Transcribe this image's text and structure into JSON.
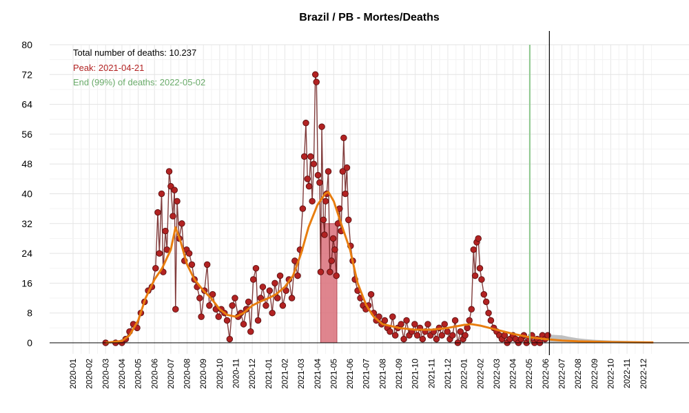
{
  "chart_data": {
    "type": "line",
    "title": "Brazil / PB - Mortes/Deaths",
    "xlabel": "",
    "ylabel": "",
    "ylim": [
      0,
      80
    ],
    "xlim": [
      "2020-01",
      "2023-01"
    ],
    "y_ticks": [
      "0",
      "8",
      "16",
      "24",
      "32",
      "40",
      "48",
      "56",
      "64",
      "72",
      "80"
    ],
    "x_ticks": [
      "2020-01",
      "2020-02",
      "2020-03",
      "2020-04",
      "2020-05",
      "2020-06",
      "2020-07",
      "2020-08",
      "2020-09",
      "2020-10",
      "2020-11",
      "2020-12",
      "2021-01",
      "2021-02",
      "2021-03",
      "2021-04",
      "2021-05",
      "2021-06",
      "2021-07",
      "2021-08",
      "2021-09",
      "2021-10",
      "2021-11",
      "2021-12",
      "2022-01",
      "2022-02",
      "2022-03",
      "2022-04",
      "2022-05",
      "2022-06",
      "2022-07",
      "2022-08",
      "2022-09",
      "2022-10",
      "2022-11",
      "2022-12"
    ],
    "grid": true,
    "annotations": {
      "total": "Total number of deaths: 10.237",
      "peak": "Peak: 2021-04-21",
      "end": "End (99%) of deaths: 2022-05-02"
    },
    "colors": {
      "points": "#b22222",
      "point_line": "#6b1a1a",
      "fit": "#e87d0e",
      "peak_band": "#d9707a",
      "end_line": "#8fc98f",
      "peak_text": "#b22222",
      "end_text": "#6aab6a",
      "forecast": "#b0b0b0"
    },
    "peak_band_range": [
      "2021-04-07",
      "2021-05-07"
    ],
    "peak_band_height": 32,
    "end_date": "2022-05-02",
    "data_end_date": "2022-06-08",
    "series": [
      {
        "type": "daily_deaths",
        "points": [
          [
            "2020-03-01",
            0
          ],
          [
            "2020-03-20",
            0
          ],
          [
            "2020-04-01",
            0
          ],
          [
            "2020-04-08",
            1
          ],
          [
            "2020-04-15",
            3
          ],
          [
            "2020-04-22",
            5
          ],
          [
            "2020-04-29",
            4
          ],
          [
            "2020-05-06",
            8
          ],
          [
            "2020-05-13",
            11
          ],
          [
            "2020-05-20",
            14
          ],
          [
            "2020-05-27",
            15
          ],
          [
            "2020-06-03",
            20
          ],
          [
            "2020-06-07",
            35
          ],
          [
            "2020-06-10",
            24
          ],
          [
            "2020-06-14",
            40
          ],
          [
            "2020-06-17",
            19
          ],
          [
            "2020-06-21",
            30
          ],
          [
            "2020-06-24",
            25
          ],
          [
            "2020-06-28",
            46
          ],
          [
            "2020-07-01",
            42
          ],
          [
            "2020-07-05",
            34
          ],
          [
            "2020-07-08",
            41
          ],
          [
            "2020-07-10",
            9
          ],
          [
            "2020-07-13",
            38
          ],
          [
            "2020-07-17",
            28
          ],
          [
            "2020-07-22",
            32
          ],
          [
            "2020-07-27",
            22
          ],
          [
            "2020-07-31",
            25
          ],
          [
            "2020-08-05",
            24
          ],
          [
            "2020-08-10",
            21
          ],
          [
            "2020-08-15",
            17
          ],
          [
            "2020-08-20",
            15
          ],
          [
            "2020-08-25",
            12
          ],
          [
            "2020-08-28",
            7
          ],
          [
            "2020-09-03",
            14
          ],
          [
            "2020-09-08",
            21
          ],
          [
            "2020-09-12",
            10
          ],
          [
            "2020-09-18",
            13
          ],
          [
            "2020-09-24",
            9
          ],
          [
            "2020-09-29",
            7
          ],
          [
            "2020-10-04",
            9
          ],
          [
            "2020-10-10",
            8
          ],
          [
            "2020-10-15",
            6
          ],
          [
            "2020-10-20",
            1
          ],
          [
            "2020-10-25",
            10
          ],
          [
            "2020-10-30",
            12
          ],
          [
            "2020-11-05",
            7
          ],
          [
            "2020-11-10",
            8
          ],
          [
            "2020-11-15",
            5
          ],
          [
            "2020-11-20",
            9
          ],
          [
            "2020-11-24",
            11
          ],
          [
            "2020-11-28",
            3
          ],
          [
            "2020-12-03",
            17
          ],
          [
            "2020-12-08",
            20
          ],
          [
            "2020-12-12",
            6
          ],
          [
            "2020-12-17",
            12
          ],
          [
            "2020-12-21",
            15
          ],
          [
            "2020-12-27",
            10
          ],
          [
            "2021-01-03",
            14
          ],
          [
            "2021-01-08",
            8
          ],
          [
            "2021-01-13",
            16
          ],
          [
            "2021-01-18",
            12
          ],
          [
            "2021-01-23",
            18
          ],
          [
            "2021-01-28",
            10
          ],
          [
            "2021-02-03",
            14
          ],
          [
            "2021-02-08",
            17
          ],
          [
            "2021-02-13",
            12
          ],
          [
            "2021-02-18",
            22
          ],
          [
            "2021-02-23",
            18
          ],
          [
            "2021-02-27",
            25
          ],
          [
            "2021-03-04",
            36
          ],
          [
            "2021-03-07",
            50
          ],
          [
            "2021-03-10",
            59
          ],
          [
            "2021-03-13",
            44
          ],
          [
            "2021-03-16",
            42
          ],
          [
            "2021-03-19",
            50
          ],
          [
            "2021-03-22",
            38
          ],
          [
            "2021-03-25",
            48
          ],
          [
            "2021-03-28",
            72
          ],
          [
            "2021-03-30",
            70
          ],
          [
            "2021-04-02",
            45
          ],
          [
            "2021-04-05",
            43
          ],
          [
            "2021-04-07",
            19
          ],
          [
            "2021-04-09",
            58
          ],
          [
            "2021-04-12",
            33
          ],
          [
            "2021-04-14",
            29
          ],
          [
            "2021-04-16",
            38
          ],
          [
            "2021-04-18",
            40
          ],
          [
            "2021-04-21",
            46
          ],
          [
            "2021-04-24",
            19
          ],
          [
            "2021-04-27",
            22
          ],
          [
            "2021-04-30",
            28
          ],
          [
            "2021-05-03",
            25
          ],
          [
            "2021-05-06",
            18
          ],
          [
            "2021-05-09",
            32
          ],
          [
            "2021-05-12",
            36
          ],
          [
            "2021-05-15",
            30
          ],
          [
            "2021-05-18",
            46
          ],
          [
            "2021-05-20",
            55
          ],
          [
            "2021-05-23",
            40
          ],
          [
            "2021-05-26",
            47
          ],
          [
            "2021-05-29",
            33
          ],
          [
            "2021-06-02",
            26
          ],
          [
            "2021-06-06",
            22
          ],
          [
            "2021-06-10",
            17
          ],
          [
            "2021-06-15",
            14
          ],
          [
            "2021-06-20",
            12
          ],
          [
            "2021-06-25",
            10
          ],
          [
            "2021-06-30",
            9
          ],
          [
            "2021-07-05",
            10
          ],
          [
            "2021-07-10",
            13
          ],
          [
            "2021-07-15",
            8
          ],
          [
            "2021-07-20",
            6
          ],
          [
            "2021-07-25",
            7
          ],
          [
            "2021-07-30",
            5
          ],
          [
            "2021-08-05",
            6
          ],
          [
            "2021-08-10",
            4
          ],
          [
            "2021-08-15",
            3
          ],
          [
            "2021-08-20",
            7
          ],
          [
            "2021-08-25",
            2
          ],
          [
            "2021-08-30",
            4
          ],
          [
            "2021-09-05",
            5
          ],
          [
            "2021-09-10",
            1
          ],
          [
            "2021-09-15",
            6
          ],
          [
            "2021-09-20",
            2
          ],
          [
            "2021-09-25",
            3
          ],
          [
            "2021-09-30",
            5
          ],
          [
            "2021-10-05",
            2
          ],
          [
            "2021-10-10",
            4
          ],
          [
            "2021-10-15",
            1
          ],
          [
            "2021-10-20",
            3
          ],
          [
            "2021-10-25",
            5
          ],
          [
            "2021-10-30",
            2
          ],
          [
            "2021-11-05",
            3
          ],
          [
            "2021-11-10",
            1
          ],
          [
            "2021-11-15",
            4
          ],
          [
            "2021-11-20",
            2
          ],
          [
            "2021-11-25",
            5
          ],
          [
            "2021-11-30",
            3
          ],
          [
            "2021-12-05",
            1
          ],
          [
            "2021-12-10",
            2
          ],
          [
            "2021-12-15",
            6
          ],
          [
            "2021-12-20",
            0
          ],
          [
            "2021-12-25",
            3
          ],
          [
            "2021-12-30",
            1
          ],
          [
            "2022-01-03",
            2
          ],
          [
            "2022-01-07",
            4
          ],
          [
            "2022-01-11",
            6
          ],
          [
            "2022-01-15",
            9
          ],
          [
            "2022-01-19",
            25
          ],
          [
            "2022-01-22",
            18
          ],
          [
            "2022-01-25",
            27
          ],
          [
            "2022-01-28",
            28
          ],
          [
            "2022-01-31",
            20
          ],
          [
            "2022-02-03",
            17
          ],
          [
            "2022-02-07",
            13
          ],
          [
            "2022-02-11",
            11
          ],
          [
            "2022-02-15",
            8
          ],
          [
            "2022-02-19",
            6
          ],
          [
            "2022-02-24",
            4
          ],
          [
            "2022-03-01",
            3
          ],
          [
            "2022-03-06",
            2
          ],
          [
            "2022-03-11",
            1
          ],
          [
            "2022-03-16",
            2
          ],
          [
            "2022-03-21",
            0
          ],
          [
            "2022-03-26",
            1
          ],
          [
            "2022-04-01",
            2
          ],
          [
            "2022-04-06",
            1
          ],
          [
            "2022-04-11",
            0
          ],
          [
            "2022-04-16",
            1
          ],
          [
            "2022-04-21",
            2
          ],
          [
            "2022-04-26",
            0
          ],
          [
            "2022-05-01",
            1
          ],
          [
            "2022-05-06",
            2
          ],
          [
            "2022-05-11",
            0
          ],
          [
            "2022-05-16",
            1
          ],
          [
            "2022-05-21",
            0
          ],
          [
            "2022-05-26",
            2
          ],
          [
            "2022-05-31",
            1
          ],
          [
            "2022-06-05",
            2
          ]
        ]
      },
      {
        "type": "fitted_curve",
        "points": [
          [
            "2020-03-01",
            0
          ],
          [
            "2020-04-01",
            0.5
          ],
          [
            "2020-04-15",
            2
          ],
          [
            "2020-05-01",
            6
          ],
          [
            "2020-05-15",
            12
          ],
          [
            "2020-06-01",
            17
          ],
          [
            "2020-06-15",
            20
          ],
          [
            "2020-07-01",
            25
          ],
          [
            "2020-07-10",
            31
          ],
          [
            "2020-07-20",
            27
          ],
          [
            "2020-08-01",
            21
          ],
          [
            "2020-08-15",
            17
          ],
          [
            "2020-09-01",
            14
          ],
          [
            "2020-09-15",
            12
          ],
          [
            "2020-10-01",
            9
          ],
          [
            "2020-10-15",
            7.5
          ],
          [
            "2020-11-01",
            7
          ],
          [
            "2020-11-15",
            8
          ],
          [
            "2020-12-01",
            10
          ],
          [
            "2020-12-15",
            11
          ],
          [
            "2021-01-01",
            12
          ],
          [
            "2021-01-15",
            13
          ],
          [
            "2021-02-01",
            15
          ],
          [
            "2021-02-15",
            18
          ],
          [
            "2021-03-01",
            24
          ],
          [
            "2021-03-15",
            31
          ],
          [
            "2021-04-01",
            37
          ],
          [
            "2021-04-15",
            40
          ],
          [
            "2021-04-21",
            40.5
          ],
          [
            "2021-05-01",
            38
          ],
          [
            "2021-05-15",
            32
          ],
          [
            "2021-06-01",
            25
          ],
          [
            "2021-06-15",
            16
          ],
          [
            "2021-07-01",
            10
          ],
          [
            "2021-07-15",
            7
          ],
          [
            "2021-08-01",
            5
          ],
          [
            "2021-09-01",
            4
          ],
          [
            "2021-10-01",
            3.5
          ],
          [
            "2021-11-01",
            3.5
          ],
          [
            "2021-12-01",
            4
          ],
          [
            "2022-01-01",
            4.8
          ],
          [
            "2022-01-15",
            5
          ],
          [
            "2022-02-01",
            4.6
          ],
          [
            "2022-03-01",
            3.5
          ],
          [
            "2022-04-01",
            2.4
          ],
          [
            "2022-05-01",
            1.5
          ],
          [
            "2022-06-01",
            1
          ],
          [
            "2022-07-01",
            0.6
          ],
          [
            "2022-08-01",
            0.4
          ],
          [
            "2022-10-01",
            0.2
          ],
          [
            "2022-12-20",
            0.1
          ]
        ]
      },
      {
        "type": "forecast_band",
        "points": [
          [
            "2022-06-08",
            2.2
          ],
          [
            "2022-07-01",
            2.0
          ],
          [
            "2022-07-15",
            1.6
          ],
          [
            "2022-08-01",
            1.2
          ],
          [
            "2022-08-15",
            1.0
          ],
          [
            "2022-09-01",
            0.8
          ],
          [
            "2022-10-01",
            0.6
          ],
          [
            "2022-11-01",
            0.5
          ],
          [
            "2022-12-01",
            0.4
          ],
          [
            "2022-12-20",
            0.3
          ]
        ]
      }
    ]
  }
}
